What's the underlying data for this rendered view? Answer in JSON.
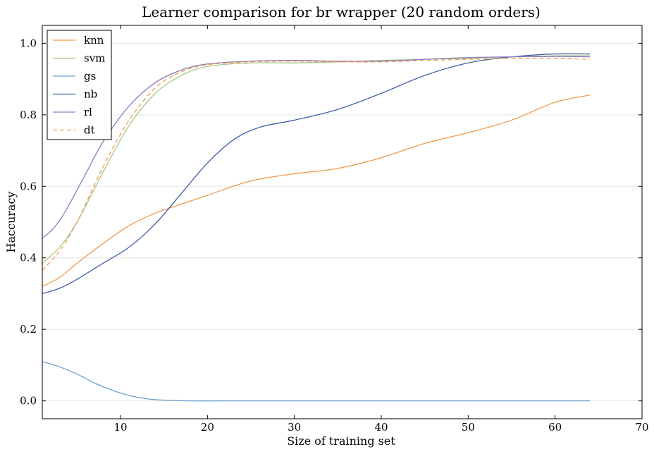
{
  "chart_data": {
    "type": "line",
    "title": "Learner comparison for br wrapper (20 random orders)",
    "xlabel": "Size of training set",
    "ylabel": "Haccuracy",
    "xlim": [
      1,
      70
    ],
    "ylim": [
      -0.05,
      1.05
    ],
    "xticks": [
      10,
      20,
      30,
      40,
      50,
      60,
      70
    ],
    "yticks": [
      0.0,
      0.2,
      0.4,
      0.6,
      0.8,
      1.0
    ],
    "xtick_labels": [
      "10",
      "20",
      "30",
      "40",
      "50",
      "60",
      "70"
    ],
    "ytick_labels": [
      "0.0",
      "0.2",
      "0.4",
      "0.6",
      "0.8",
      "1.0"
    ],
    "grid": "horizontal",
    "legend_position": "top-left",
    "series": [
      {
        "name": "knn",
        "color": "#F0984A",
        "dash": "solid",
        "x": [
          1,
          3,
          5,
          8,
          11,
          14,
          17,
          20,
          25,
          30,
          35,
          40,
          45,
          50,
          55,
          60,
          64
        ],
        "y": [
          0.32,
          0.345,
          0.385,
          0.44,
          0.49,
          0.525,
          0.55,
          0.575,
          0.615,
          0.635,
          0.65,
          0.68,
          0.72,
          0.75,
          0.785,
          0.835,
          0.855
        ]
      },
      {
        "name": "svm",
        "color": "#A8C68A",
        "dash": "solid",
        "x": [
          1,
          3,
          5,
          8,
          11,
          14,
          17,
          20,
          25,
          30,
          35,
          40,
          45,
          50,
          55,
          60,
          64
        ],
        "y": [
          0.385,
          0.43,
          0.5,
          0.64,
          0.77,
          0.86,
          0.91,
          0.935,
          0.945,
          0.945,
          0.948,
          0.952,
          0.955,
          0.958,
          0.962,
          0.965,
          0.965
        ]
      },
      {
        "name": "gs",
        "color": "#6A9FD0",
        "dash": "solid",
        "x": [
          1,
          3,
          5,
          7,
          9,
          11,
          13,
          15,
          18,
          22,
          30,
          40,
          50,
          60,
          64
        ],
        "y": [
          0.11,
          0.095,
          0.075,
          0.05,
          0.03,
          0.015,
          0.006,
          0.002,
          0.0,
          0.0,
          0.0,
          0.0,
          0.0,
          0.0,
          0.0
        ]
      },
      {
        "name": "nb",
        "color": "#3F5FA8",
        "dash": "solid",
        "x": [
          1,
          3,
          5,
          8,
          11,
          14,
          17,
          20,
          23,
          26,
          30,
          35,
          40,
          45,
          50,
          55,
          60,
          64
        ],
        "y": [
          0.3,
          0.315,
          0.34,
          0.385,
          0.43,
          0.495,
          0.58,
          0.665,
          0.73,
          0.765,
          0.785,
          0.815,
          0.86,
          0.91,
          0.945,
          0.962,
          0.97,
          0.97
        ]
      },
      {
        "name": "rl",
        "color": "#8A7BBF",
        "dash": "solid",
        "x": [
          1,
          2,
          3,
          4,
          6,
          8,
          11,
          14,
          17,
          20,
          25,
          30,
          35,
          40,
          45,
          50,
          55,
          60,
          64
        ],
        "y": [
          0.455,
          0.475,
          0.505,
          0.545,
          0.635,
          0.725,
          0.825,
          0.89,
          0.925,
          0.942,
          0.95,
          0.952,
          0.95,
          0.95,
          0.955,
          0.96,
          0.962,
          0.963,
          0.962
        ]
      },
      {
        "name": "dt",
        "color": "#F0984A",
        "dash": "dashed",
        "x": [
          1,
          3,
          5,
          8,
          11,
          14,
          17,
          20,
          25,
          30,
          35,
          40,
          45,
          50,
          55,
          60,
          64
        ],
        "y": [
          0.365,
          0.42,
          0.5,
          0.655,
          0.785,
          0.875,
          0.92,
          0.94,
          0.948,
          0.95,
          0.948,
          0.948,
          0.952,
          0.955,
          0.958,
          0.958,
          0.955
        ]
      }
    ]
  }
}
